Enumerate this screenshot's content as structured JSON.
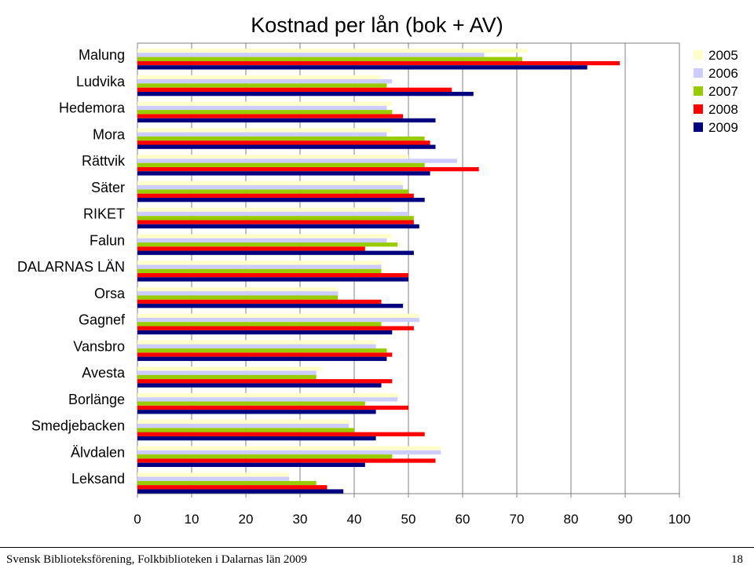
{
  "chart_data": {
    "type": "bar",
    "orientation": "horizontal",
    "title": "Kostnad per lån (bok + AV)",
    "categories": [
      "Malung",
      "Ludvika",
      "Hedemora",
      "Mora",
      "Rättvik",
      "Säter",
      "RIKET",
      "Falun",
      "DALARNAS LÄN",
      "Orsa",
      "Gagnef",
      "Vansbro",
      "Avesta",
      "Borlänge",
      "Smedjebacken",
      "Älvdalen",
      "Leksand"
    ],
    "series": [
      {
        "name": "2005",
        "color": "#ffffcc",
        "values": [
          72,
          45,
          47,
          47,
          50,
          49,
          47,
          47,
          45,
          37,
          52,
          44,
          34,
          48,
          39,
          56,
          28
        ]
      },
      {
        "name": "2006",
        "color": "#ccccff",
        "values": [
          64,
          47,
          46,
          46,
          59,
          49,
          50,
          46,
          45,
          37,
          52,
          44,
          33,
          48,
          39,
          56,
          28
        ]
      },
      {
        "name": "2007",
        "color": "#99cc00",
        "values": [
          71,
          46,
          47,
          53,
          53,
          50,
          51,
          48,
          45,
          37,
          45,
          46,
          33,
          42,
          40,
          47,
          33
        ]
      },
      {
        "name": "2008",
        "color": "#ff0000",
        "values": [
          89,
          58,
          49,
          54,
          63,
          51,
          51,
          42,
          50,
          45,
          51,
          47,
          47,
          50,
          53,
          55,
          35
        ]
      },
      {
        "name": "2009",
        "color": "#000080",
        "values": [
          83,
          62,
          55,
          55,
          54,
          53,
          52,
          51,
          50,
          49,
          47,
          46,
          45,
          44,
          44,
          42,
          38
        ]
      }
    ],
    "xlim": [
      0,
      100
    ],
    "xticks": [
      0,
      10,
      20,
      30,
      40,
      50,
      60,
      70,
      80,
      90,
      100
    ],
    "grid": true,
    "legend_position": "top-right"
  },
  "footer": {
    "left": "Svensk Biblioteksförening, Folkbiblioteken i Dalarnas län 2009",
    "right": "18"
  }
}
